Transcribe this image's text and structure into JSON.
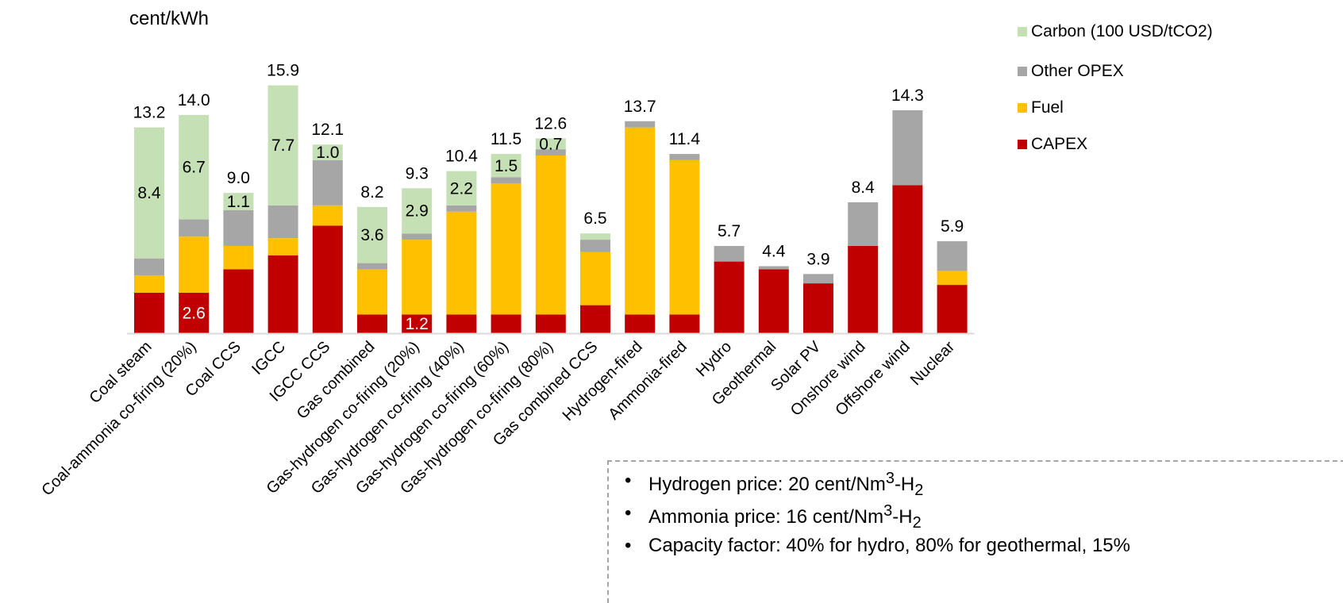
{
  "chart_data": {
    "type": "bar",
    "stacked": true,
    "ylabel": "cent/kWh",
    "categories": [
      "Coal steam",
      "Coal-ammonia co-firing (20%)",
      "Coal CCS",
      "IGCC",
      "IGCC CCS",
      "Gas combined",
      "Gas-hydrogen co-firing (20%)",
      "Gas-hydrogen co-firing (40%)",
      "Gas-hydrogen co-firing (60%)",
      "Gas-hydrogen co-firing (80%)",
      "Gas combined CCS",
      "Hydrogen-fired",
      "Ammonia-fired",
      "Hydro",
      "Geothermal",
      "Solar PV",
      "Onshore wind",
      "Offshore wind",
      "Nuclear"
    ],
    "totals": [
      "13.2",
      "14.0",
      "9.0",
      "15.9",
      "12.1",
      "8.2",
      "9.3",
      "10.4",
      "11.5",
      "12.6",
      "6.5",
      "13.7",
      "11.4",
      "5.7",
      "4.4",
      "3.9",
      "8.4",
      "14.3",
      "5.9"
    ],
    "series": [
      {
        "name": "CAPEX",
        "color": "#c00000",
        "values": [
          2.6,
          2.6,
          4.1,
          5.0,
          6.9,
          1.2,
          1.2,
          1.2,
          1.2,
          1.2,
          1.8,
          1.2,
          1.2,
          4.6,
          4.1,
          3.2,
          5.6,
          9.5,
          3.1
        ]
      },
      {
        "name": "Fuel",
        "color": "#ffc000",
        "values": [
          1.1,
          3.6,
          1.5,
          1.1,
          1.3,
          2.9,
          4.8,
          6.6,
          8.4,
          10.2,
          3.4,
          12.0,
          9.9,
          0,
          0,
          0,
          0,
          0,
          0.9
        ]
      },
      {
        "name": "Other OPEX",
        "color": "#a6a6a6",
        "values": [
          1.1,
          1.1,
          2.3,
          2.1,
          2.9,
          0.4,
          0.4,
          0.4,
          0.4,
          0.4,
          0.8,
          0.4,
          0.4,
          1.0,
          0.2,
          0.6,
          2.8,
          4.8,
          1.9
        ]
      },
      {
        "name": "Carbon (100 USD/tCO2)",
        "color": "#c5e0b4",
        "values": [
          8.4,
          6.7,
          1.1,
          7.7,
          1.0,
          3.6,
          2.9,
          2.2,
          1.5,
          0.7,
          0.4,
          0,
          0,
          0,
          0,
          0,
          0,
          0,
          0
        ]
      }
    ],
    "segment_labels": [
      {
        "series": 0,
        "index": 1,
        "text": "2.6"
      },
      {
        "series": 0,
        "index": 6,
        "text": "1.2"
      },
      {
        "series": 3,
        "index": 0,
        "text": "8.4"
      },
      {
        "series": 3,
        "index": 1,
        "text": "6.7"
      },
      {
        "series": 3,
        "index": 2,
        "text": "1.1"
      },
      {
        "series": 3,
        "index": 3,
        "text": "7.7"
      },
      {
        "series": 3,
        "index": 4,
        "text": "1.0"
      },
      {
        "series": 3,
        "index": 5,
        "text": "3.6"
      },
      {
        "series": 3,
        "index": 6,
        "text": "2.9"
      },
      {
        "series": 3,
        "index": 7,
        "text": "2.2"
      },
      {
        "series": 3,
        "index": 8,
        "text": "1.5"
      },
      {
        "series": 3,
        "index": 9,
        "text": "0.7"
      }
    ],
    "ylim": [
      0,
      16
    ],
    "grid": false,
    "legend_position": "top-right"
  },
  "legend": [
    {
      "label": "Carbon (100 USD/tCO2)",
      "color": "#c5e0b4"
    },
    {
      "label": "Other OPEX",
      "color": "#a6a6a6"
    },
    {
      "label": "Fuel",
      "color": "#ffc000"
    },
    {
      "label": "CAPEX",
      "color": "#c00000"
    }
  ],
  "notes": [
    {
      "text": "Hydrogen price: 20 cent/Nm",
      "sup": "3",
      "tail": "-H",
      "sub": "2"
    },
    {
      "text": "Ammonia price: 16 cent/Nm",
      "sup": "3",
      "tail": "-H",
      "sub": "2"
    },
    {
      "text": "Capacity factor: 40% for hydro, 80% for geothermal, 15%",
      "sup": "",
      "tail": "",
      "sub": ""
    }
  ]
}
